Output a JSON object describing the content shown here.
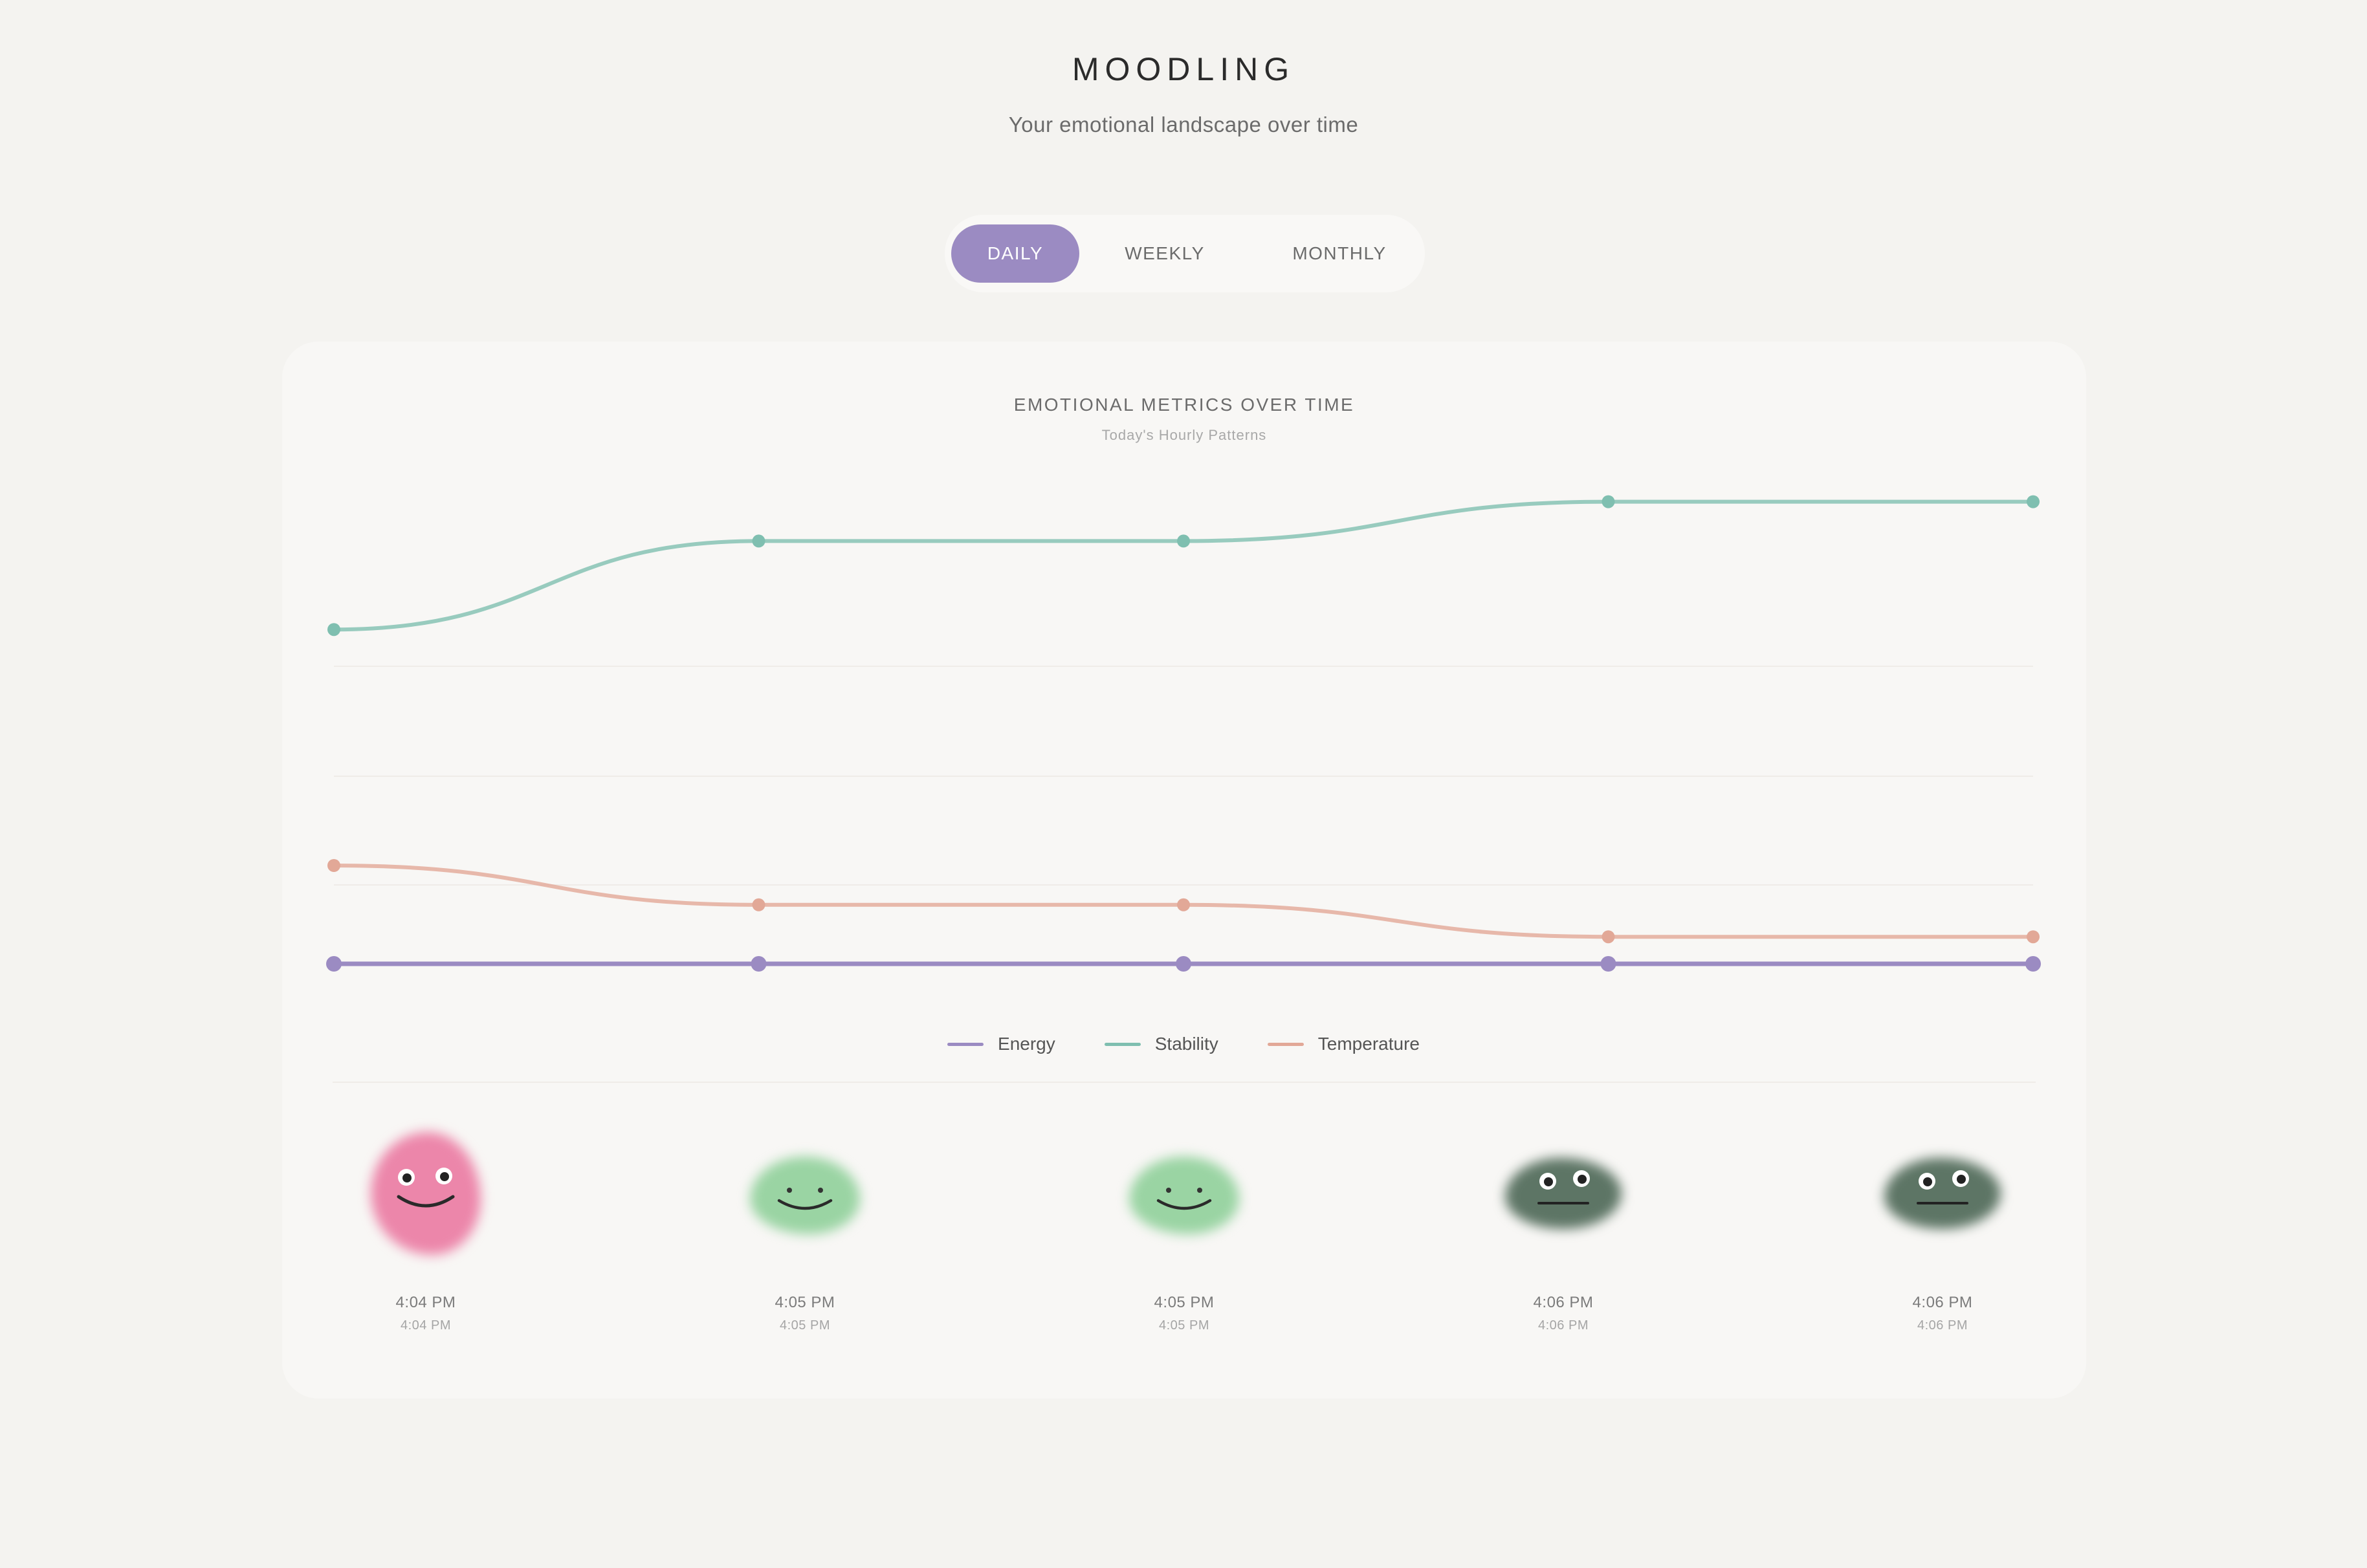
{
  "app": {
    "title": "MOODLING",
    "subtitle": "Your emotional landscape over time"
  },
  "view_tabs": [
    {
      "label": "DAILY",
      "active": true
    },
    {
      "label": "WEEKLY",
      "active": false
    },
    {
      "label": "MONTHLY",
      "active": false
    }
  ],
  "colors": {
    "accent": "#9b8bc2",
    "energy": "#9b8bc2",
    "stability": "#7fbfb0",
    "temperature": "#e2a897"
  },
  "chart_data": {
    "type": "line",
    "title": "EMOTIONAL METRICS OVER TIME",
    "subtitle": "Today's Hourly Patterns",
    "x": [
      "4:04 PM",
      "4:05 PM",
      "4:05 PM",
      "4:06 PM",
      "4:06 PM"
    ],
    "xlabel": "",
    "ylabel": "",
    "ylim": [
      0,
      100
    ],
    "grid": true,
    "legend_position": "bottom-center",
    "series": [
      {
        "name": "Energy",
        "color": "#9b8bc2",
        "values": [
          0,
          0,
          0,
          0,
          0
        ]
      },
      {
        "name": "Stability",
        "color": "#7fbfb0",
        "values": [
          68,
          86,
          86,
          94,
          94
        ]
      },
      {
        "name": "Temperature",
        "color": "#e2a897",
        "values": [
          20,
          12,
          12,
          5.5,
          5.5
        ]
      }
    ]
  },
  "moods": [
    {
      "time": "4:04 PM",
      "time_sub": "4:04 PM",
      "color": "#ec86aa",
      "expression": "happy-wide-eyes"
    },
    {
      "time": "4:05 PM",
      "time_sub": "4:05 PM",
      "color": "#9ad4a3",
      "expression": "content"
    },
    {
      "time": "4:05 PM",
      "time_sub": "4:05 PM",
      "color": "#9ad4a3",
      "expression": "content"
    },
    {
      "time": "4:06 PM",
      "time_sub": "4:06 PM",
      "color": "#5d7565",
      "expression": "neutral"
    },
    {
      "time": "4:06 PM",
      "time_sub": "4:06 PM",
      "color": "#5d7565",
      "expression": "neutral"
    }
  ]
}
